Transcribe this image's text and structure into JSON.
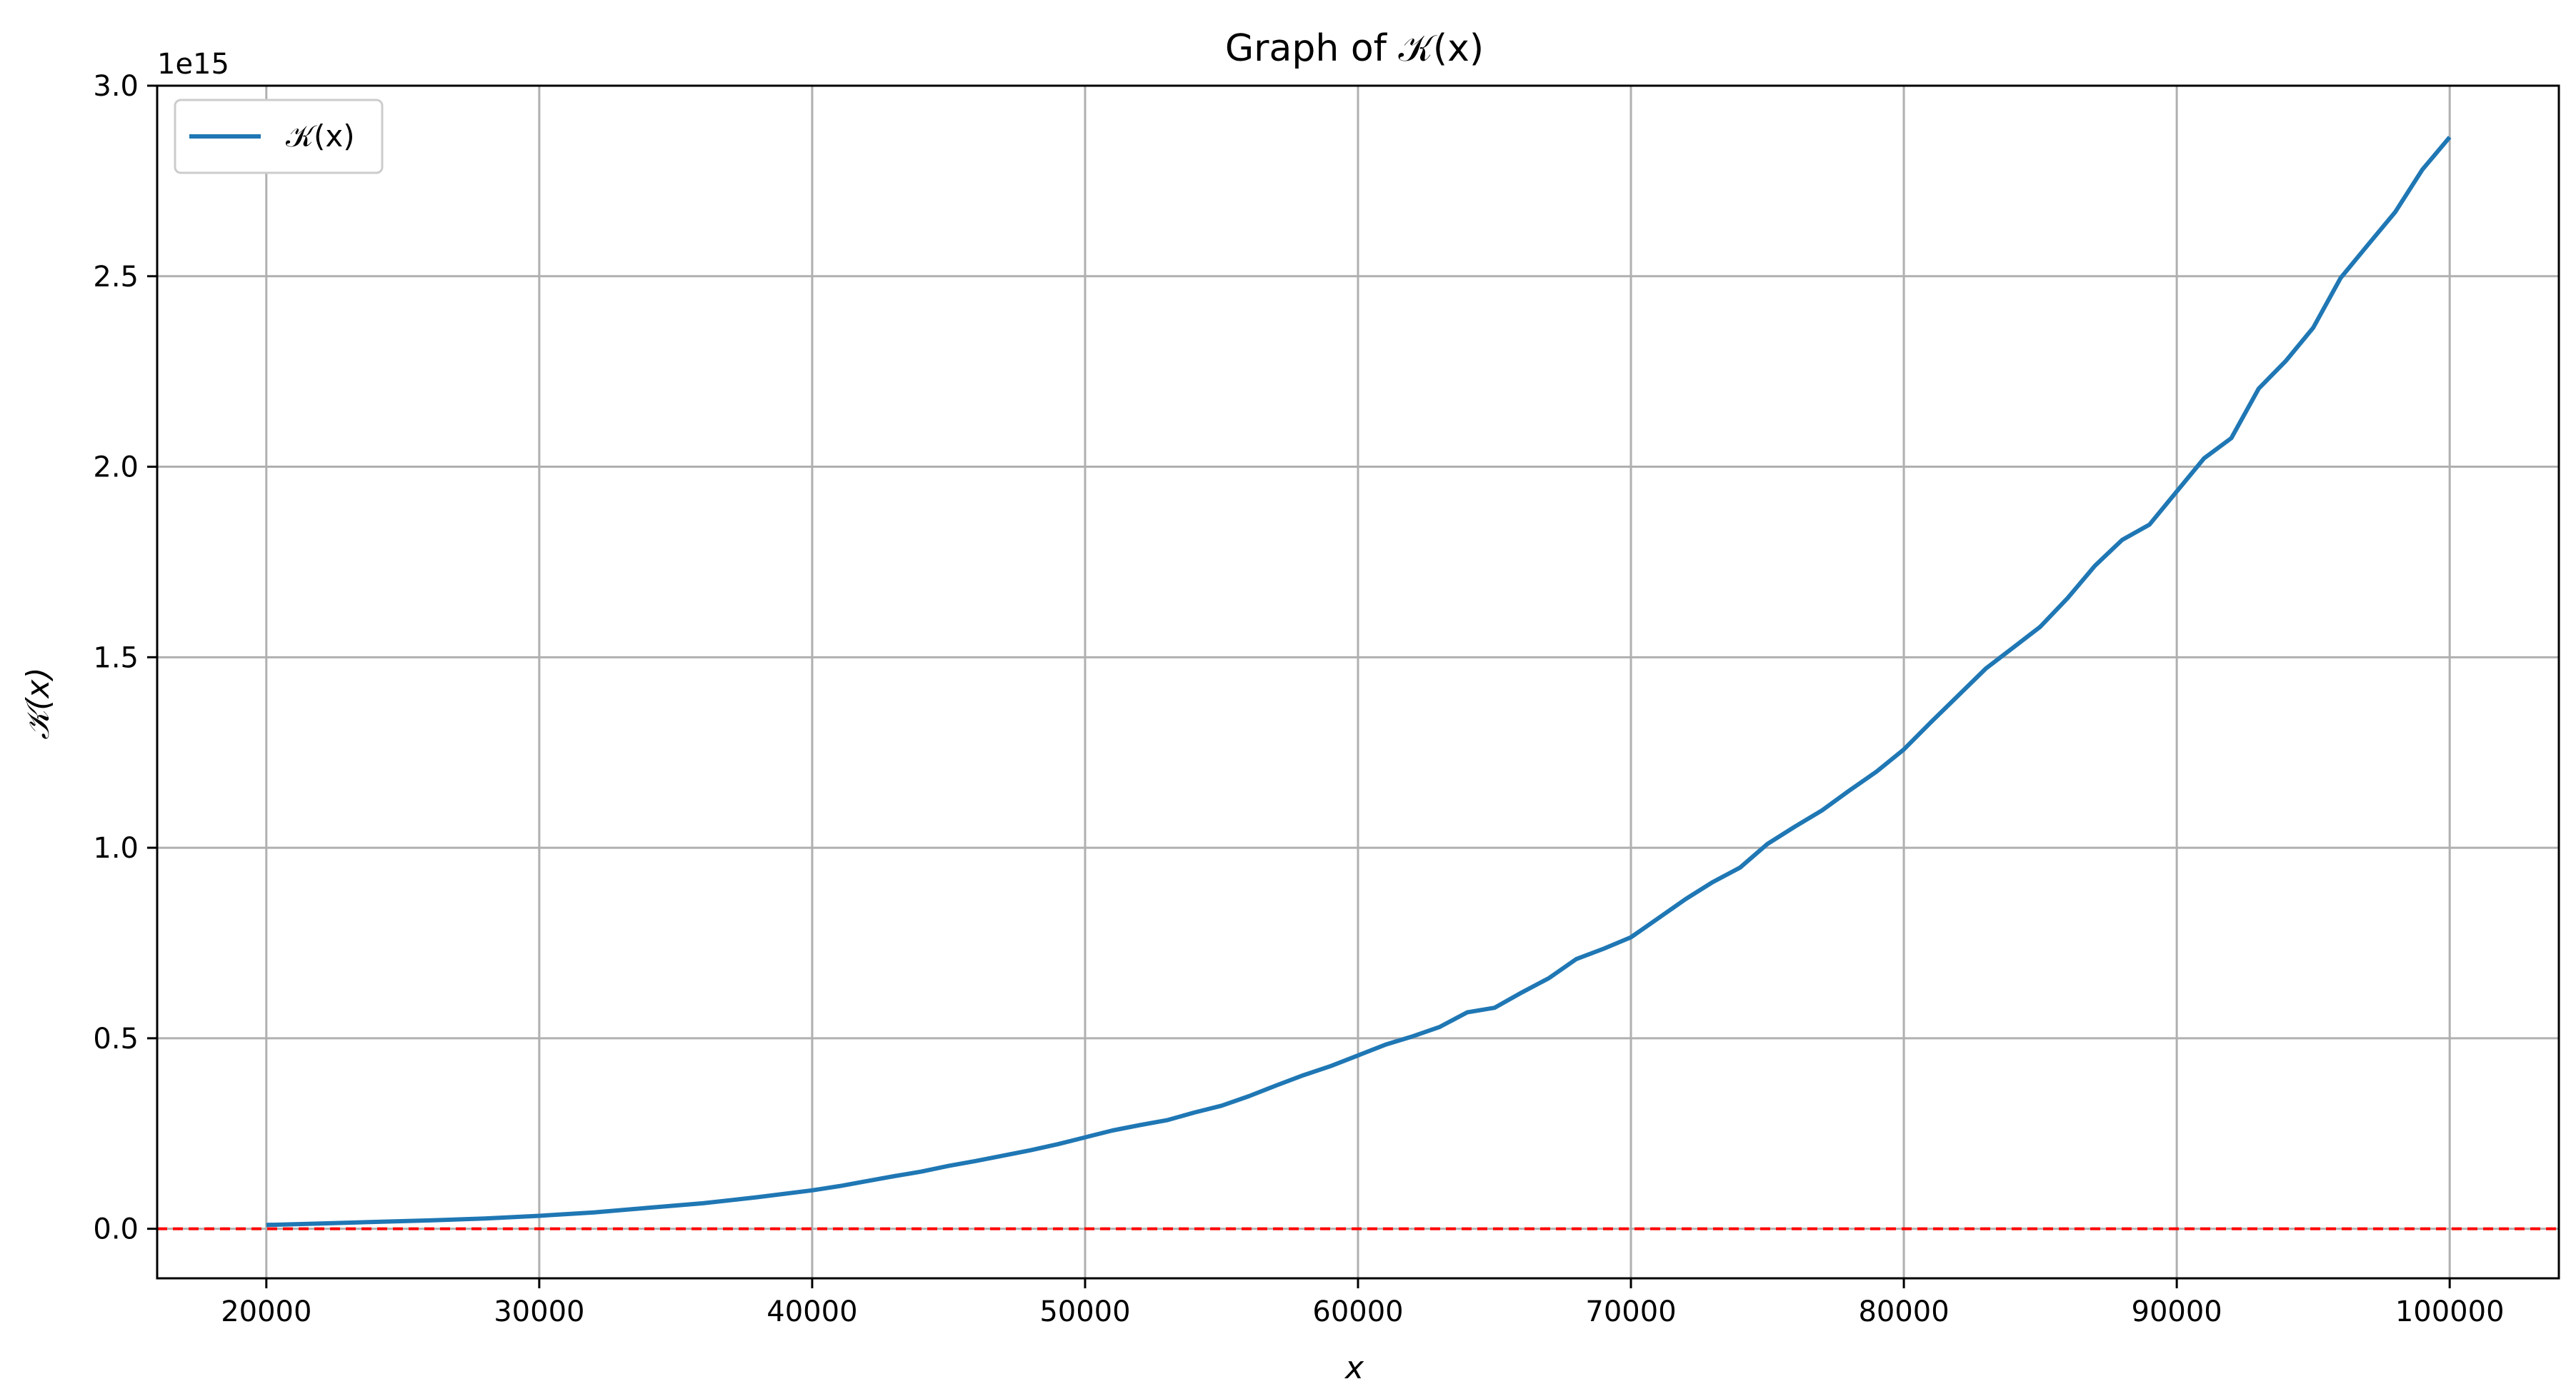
{
  "chart_data": {
    "type": "line",
    "title": "Graph of 𝒦(x)",
    "xlabel": "x",
    "ylabel": "𝒦(x)",
    "y_offset_label": "1e15",
    "xlim": [
      16000,
      104000
    ],
    "ylim": [
      -0.13,
      3.0
    ],
    "y_scale_note": "values in units of 1e15",
    "x_ticks": [
      20000,
      30000,
      40000,
      50000,
      60000,
      70000,
      80000,
      90000,
      100000
    ],
    "x_tick_labels": [
      "20000",
      "30000",
      "40000",
      "50000",
      "60000",
      "70000",
      "80000",
      "90000",
      "100000"
    ],
    "y_ticks": [
      0.0,
      0.5,
      1.0,
      1.5,
      2.0,
      2.5,
      3.0
    ],
    "y_tick_labels": [
      "0.0",
      "0.5",
      "1.0",
      "1.5",
      "2.0",
      "2.5",
      "3.0"
    ],
    "grid": true,
    "legend_position": "top-left",
    "reference_line": {
      "y": 0,
      "style": "dashed",
      "color": "#ff0000"
    },
    "series": [
      {
        "name": "𝒦(x)",
        "color": "#1f77b4",
        "x": [
          20000,
          22000,
          24000,
          26000,
          28000,
          30000,
          32000,
          34000,
          36000,
          38000,
          40000,
          41000,
          42000,
          43000,
          44000,
          45000,
          46000,
          47000,
          48000,
          49000,
          50000,
          51000,
          52000,
          53000,
          54000,
          55000,
          56000,
          57000,
          58000,
          59000,
          60000,
          61000,
          62000,
          63000,
          64000,
          65000,
          66000,
          67000,
          68000,
          69000,
          70000,
          71000,
          72000,
          73000,
          74000,
          75000,
          76000,
          77000,
          78000,
          79000,
          80000,
          81000,
          82000,
          83000,
          84000,
          85000,
          86000,
          87000,
          88000,
          89000,
          90000,
          91000,
          92000,
          93000,
          94000,
          95000,
          96000,
          97000,
          98000,
          99000,
          100000
        ],
        "values": [
          0.01,
          0.014,
          0.018,
          0.022,
          0.027,
          0.034,
          0.043,
          0.055,
          0.067,
          0.083,
          0.101,
          0.112,
          0.125,
          0.138,
          0.15,
          0.165,
          0.178,
          0.192,
          0.206,
          0.222,
          0.24,
          0.258,
          0.272,
          0.285,
          0.305,
          0.323,
          0.348,
          0.376,
          0.403,
          0.427,
          0.455,
          0.483,
          0.505,
          0.53,
          0.568,
          0.58,
          0.62,
          0.658,
          0.708,
          0.735,
          0.765,
          0.815,
          0.865,
          0.91,
          0.948,
          1.01,
          1.055,
          1.098,
          1.15,
          1.2,
          1.258,
          1.33,
          1.4,
          1.47,
          1.525,
          1.58,
          1.655,
          1.74,
          1.808,
          1.848,
          1.935,
          2.022,
          2.075,
          2.205,
          2.278,
          2.365,
          2.495,
          2.582,
          2.668,
          2.78,
          2.865
        ]
      }
    ]
  }
}
